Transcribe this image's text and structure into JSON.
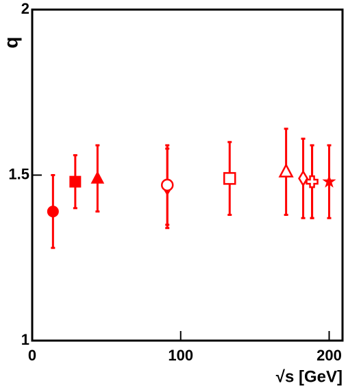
{
  "chart_data": {
    "type": "scatter",
    "x_label": "√s [GeV]",
    "y_label": "q",
    "xlim": [
      0,
      209
    ],
    "ylim": [
      1,
      2
    ],
    "xticks": [
      0,
      100,
      200
    ],
    "yticks": [
      1,
      1.5,
      2
    ],
    "color": "#ff0000",
    "series": [
      {
        "marker": "circle",
        "filled": true,
        "x": [
          14
        ],
        "values": [
          1.39
        ],
        "errors": [
          0.11
        ]
      },
      {
        "marker": "square",
        "filled": true,
        "x": [
          29
        ],
        "values": [
          1.48
        ],
        "errors": [
          0.08
        ]
      },
      {
        "marker": "triangle",
        "filled": true,
        "x": [
          44
        ],
        "values": [
          1.49
        ],
        "errors": [
          0.1
        ]
      },
      {
        "marker": "diamond",
        "filled": true,
        "x": [
          91
        ],
        "values": [
          1.46
        ],
        "errors": [
          0.12
        ]
      },
      {
        "marker": "circle",
        "filled": false,
        "x": [
          91
        ],
        "values": [
          1.47
        ],
        "errors": [
          0.12
        ]
      },
      {
        "marker": "square",
        "filled": false,
        "x": [
          133
        ],
        "values": [
          1.49
        ],
        "errors": [
          0.11
        ]
      },
      {
        "marker": "triangle",
        "filled": false,
        "x": [
          171
        ],
        "values": [
          1.51
        ],
        "errors": [
          0.13
        ]
      },
      {
        "marker": "diamond",
        "filled": false,
        "x": [
          182.5
        ],
        "values": [
          1.49
        ],
        "errors": [
          0.12
        ]
      },
      {
        "marker": "cross",
        "filled": true,
        "x": [
          188.5
        ],
        "values": [
          1.48
        ],
        "errors": [
          0.11
        ]
      },
      {
        "marker": "cross",
        "filled": false,
        "x": [
          188.5
        ],
        "values": [
          1.48
        ],
        "errors": [
          0.11
        ]
      },
      {
        "marker": "star",
        "filled": true,
        "x": [
          200
        ],
        "values": [
          1.48
        ],
        "errors": [
          0.11
        ]
      }
    ]
  }
}
